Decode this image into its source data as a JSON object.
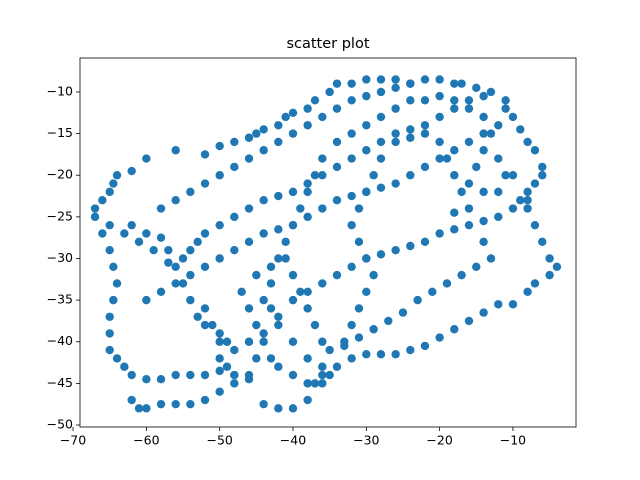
{
  "chart_data": {
    "type": "scatter",
    "title": "scatter plot",
    "color": "#1f77b4",
    "x": [
      -67,
      -66,
      -65,
      -64.5,
      -64,
      -62,
      -60,
      -56,
      -52,
      -50,
      -48,
      -46,
      -45,
      -44,
      -42,
      -41,
      -40,
      -38,
      -37,
      -35,
      -34,
      -32,
      -30,
      -28,
      -26,
      -24,
      -67,
      -66,
      -65,
      -64.5,
      -64,
      -64.5,
      -65,
      -65,
      -65,
      -64,
      -63,
      -62,
      -60,
      -58,
      -56,
      -54,
      -52,
      -50,
      -48,
      -62,
      -61,
      -60,
      -58,
      -56,
      -54,
      -52,
      -50,
      -48,
      -46,
      -44,
      -42,
      -40,
      -38,
      -37,
      -36,
      -34,
      -32,
      -30,
      -28,
      -26,
      -24,
      -22,
      -20,
      -18,
      -16,
      -14,
      -12,
      -10,
      -8,
      -7,
      -5,
      -4,
      -5,
      -6,
      -7,
      -8,
      -9,
      -8,
      -7,
      -6,
      -6,
      -7,
      -8,
      -9,
      -10,
      -11,
      -11,
      -13,
      -15,
      -17,
      -18,
      -20,
      -62,
      -60,
      -58,
      -57,
      -56,
      -55,
      -54,
      -53,
      -52,
      -50,
      -49,
      -48,
      -46,
      -44,
      -42,
      -40,
      -38,
      -36,
      -34,
      -32,
      -30,
      -28,
      -26,
      -24,
      -22,
      -20,
      -18,
      -16,
      -14,
      -12,
      -10,
      -8,
      -60,
      -58,
      -56,
      -54,
      -52,
      -50,
      -48,
      -46,
      -44,
      -42,
      -40,
      -38,
      -36,
      -34,
      -32,
      -30,
      -28,
      -26,
      -24,
      -22,
      -20,
      -18,
      -16,
      -14,
      -12,
      -65,
      -63,
      -61,
      -59,
      -57,
      -55,
      -54,
      -53,
      -52,
      -50,
      -48,
      -46,
      -44,
      -42,
      -40,
      -38,
      -36,
      -34,
      -32,
      -30,
      -28,
      -26,
      -24,
      -22,
      -20,
      -18,
      -16,
      -14,
      -58,
      -56,
      -54,
      -52,
      -50,
      -48,
      -46,
      -44,
      -42,
      -40,
      -38,
      -36,
      -34,
      -32,
      -30,
      -28,
      -26,
      -24,
      -22,
      -52,
      -51,
      -50,
      -50,
      -49,
      -48,
      -46,
      -45,
      -44,
      -45,
      -46,
      -47,
      -45,
      -43,
      -41,
      -40,
      -39,
      -38,
      -37,
      -36,
      -35,
      -33,
      -32,
      -31,
      -30,
      -29,
      -30,
      -31,
      -32,
      -31,
      -30,
      -29,
      -28,
      -26,
      -24,
      -22,
      -20,
      -19,
      -18,
      -17,
      -16,
      -15,
      -14,
      -13,
      -14,
      -16,
      -18,
      -20,
      -22,
      -24,
      -26,
      -28,
      -30,
      -32,
      -34,
      -36,
      -37,
      -38,
      -39,
      -40,
      -41,
      -42,
      -43,
      -44,
      -43,
      -42,
      -40,
      -38,
      -36,
      -35,
      -36,
      -38,
      -40,
      -42,
      -43,
      -12,
      -11,
      -10,
      -12,
      -14,
      -16,
      -18,
      -14,
      -13,
      -15,
      -17,
      -19,
      -21,
      -23,
      -25,
      -27,
      -29,
      -31,
      -33
    ],
    "values": [
      -24,
      -23,
      -22,
      -21,
      -20,
      -19.5,
      -18,
      -17,
      -17.5,
      -16.5,
      -16,
      -15.5,
      -15,
      -14.5,
      -14,
      -13,
      -12.5,
      -12,
      -11,
      -10,
      -9,
      -9,
      -8.5,
      -8.5,
      -8.5,
      -9,
      -25,
      -27,
      -29,
      -31,
      -33,
      -35,
      -37,
      -39,
      -41,
      -42,
      -43,
      -44,
      -44.5,
      -44.5,
      -44,
      -44,
      -44,
      -43.5,
      -44,
      -47,
      -48,
      -48,
      -47.5,
      -47.5,
      -47.5,
      -47,
      -46,
      -45,
      -44.5,
      -47.5,
      -48,
      -48,
      -47,
      -45,
      -44,
      -43,
      -42,
      -41.5,
      -41.5,
      -41.5,
      -41,
      -40.5,
      -39.5,
      -38.5,
      -37.5,
      -36.5,
      -35.5,
      -35.5,
      -34,
      -33,
      -32,
      -31,
      -30,
      -28,
      -26,
      -24,
      -23,
      -22,
      -21,
      -20,
      -19,
      -17,
      -16,
      -14.5,
      -13,
      -12,
      -11,
      -10,
      -9.5,
      -9,
      -9,
      -8.5,
      -26,
      -27,
      -27.5,
      -29,
      -31,
      -33,
      -35,
      -37,
      -38,
      -39,
      -40,
      -41,
      -40,
      -39,
      -37,
      -35,
      -34,
      -33,
      -32,
      -31,
      -30,
      -29.5,
      -29,
      -28.5,
      -28,
      -27,
      -26.5,
      -26,
      -25.5,
      -25,
      -24,
      -23,
      -35,
      -34,
      -33,
      -32,
      -31,
      -30,
      -29,
      -28,
      -27,
      -26.5,
      -26,
      -25,
      -24,
      -23,
      -22.5,
      -22,
      -21.5,
      -21,
      -20,
      -19,
      -18,
      -17,
      -16,
      -15,
      -14,
      -26,
      -27,
      -28,
      -29,
      -30.5,
      -30,
      -29,
      -28,
      -27,
      -26,
      -25,
      -24,
      -23,
      -22.5,
      -22,
      -21,
      -20,
      -19,
      -18,
      -17,
      -16,
      -15,
      -14.5,
      -14,
      -13,
      -12,
      -11,
      -10.5,
      -24,
      -23,
      -22,
      -21,
      -20,
      -19,
      -18,
      -17,
      -16,
      -15,
      -14,
      -13,
      -12,
      -11,
      -10.5,
      -10,
      -9.5,
      -9,
      -8.5,
      -36,
      -38,
      -40,
      -42,
      -43,
      -44,
      -44,
      -42,
      -40,
      -38,
      -36,
      -34,
      -32,
      -31,
      -30,
      -32,
      -34,
      -36,
      -38,
      -40,
      -41,
      -40,
      -38,
      -36,
      -34,
      -32,
      -30,
      -28,
      -26,
      -24,
      -22,
      -20,
      -18,
      -16,
      -15.5,
      -15,
      -16,
      -18,
      -20,
      -22,
      -21,
      -19,
      -17,
      -15,
      -13,
      -12,
      -11,
      -10.5,
      -11,
      -11,
      -12,
      -13,
      -14,
      -15,
      -16,
      -18,
      -20,
      -22,
      -24,
      -26,
      -28,
      -30,
      -33,
      -35,
      -36,
      -38,
      -40,
      -42,
      -43,
      -44,
      -45,
      -45,
      -44,
      -43,
      -42,
      -22,
      -20,
      -20,
      -18,
      -22,
      -24,
      -24.5,
      -28,
      -30,
      -31,
      -32,
      -33,
      -34,
      -35,
      -36.5,
      -37.5,
      -38.5,
      -39.5,
      -40.5
    ],
    "xlim": [
      -69.05,
      -1.4
    ],
    "ylim": [
      -50.24,
      -5.92
    ],
    "xticks": [
      {
        "value": -70,
        "label": "−70"
      },
      {
        "value": -60,
        "label": "−60"
      },
      {
        "value": -50,
        "label": "−50"
      },
      {
        "value": -40,
        "label": "−40"
      },
      {
        "value": -30,
        "label": "−30"
      },
      {
        "value": -20,
        "label": "−20"
      },
      {
        "value": -10,
        "label": "−10"
      }
    ],
    "yticks": [
      {
        "value": -10,
        "label": "−10"
      },
      {
        "value": -15,
        "label": "−15"
      },
      {
        "value": -20,
        "label": "−20"
      },
      {
        "value": -25,
        "label": "−25"
      },
      {
        "value": -30,
        "label": "−30"
      },
      {
        "value": -35,
        "label": "−35"
      },
      {
        "value": -40,
        "label": "−40"
      },
      {
        "value": -45,
        "label": "−45"
      },
      {
        "value": -50,
        "label": "−50"
      }
    ]
  }
}
